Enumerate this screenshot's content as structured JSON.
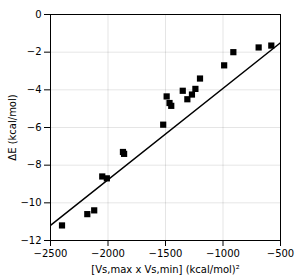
{
  "chart_data": {
    "type": "scatter",
    "xlabel": "[Vs,max x Vs,min] (kcal/mol)²",
    "ylabel": "ΔE (kcal/mol)",
    "series": [
      {
        "type": "line",
        "color": "#000000",
        "line_style": "solid",
        "x": [
          -2500,
          -500
        ],
        "values": [
          -11.2,
          -1.5
        ]
      },
      {
        "type": "scatter",
        "color": "#000000",
        "marker": "square",
        "x": [
          -2400,
          -2180,
          -2120,
          -2050,
          -2010,
          -1870,
          -1860,
          -1520,
          -1490,
          -1465,
          -1450,
          -1350,
          -1310,
          -1270,
          -1240,
          -1200,
          -990,
          -910,
          -690,
          -580
        ],
        "values": [
          -11.2,
          -10.6,
          -10.4,
          -8.6,
          -8.7,
          -7.3,
          -7.4,
          -5.85,
          -4.35,
          -4.7,
          -4.85,
          -4.05,
          -4.5,
          -4.25,
          -3.95,
          -3.4,
          -2.7,
          -2.0,
          -1.75,
          -1.65
        ]
      }
    ],
    "xlim": [
      -2500,
      -500
    ],
    "ylim": [
      -12,
      0
    ],
    "xticks": [
      -2500,
      -2000,
      -1500,
      -1000,
      -500
    ],
    "yticks": [
      0,
      -2,
      -4,
      -6,
      -8,
      -10,
      -12
    ],
    "grid": true
  }
}
